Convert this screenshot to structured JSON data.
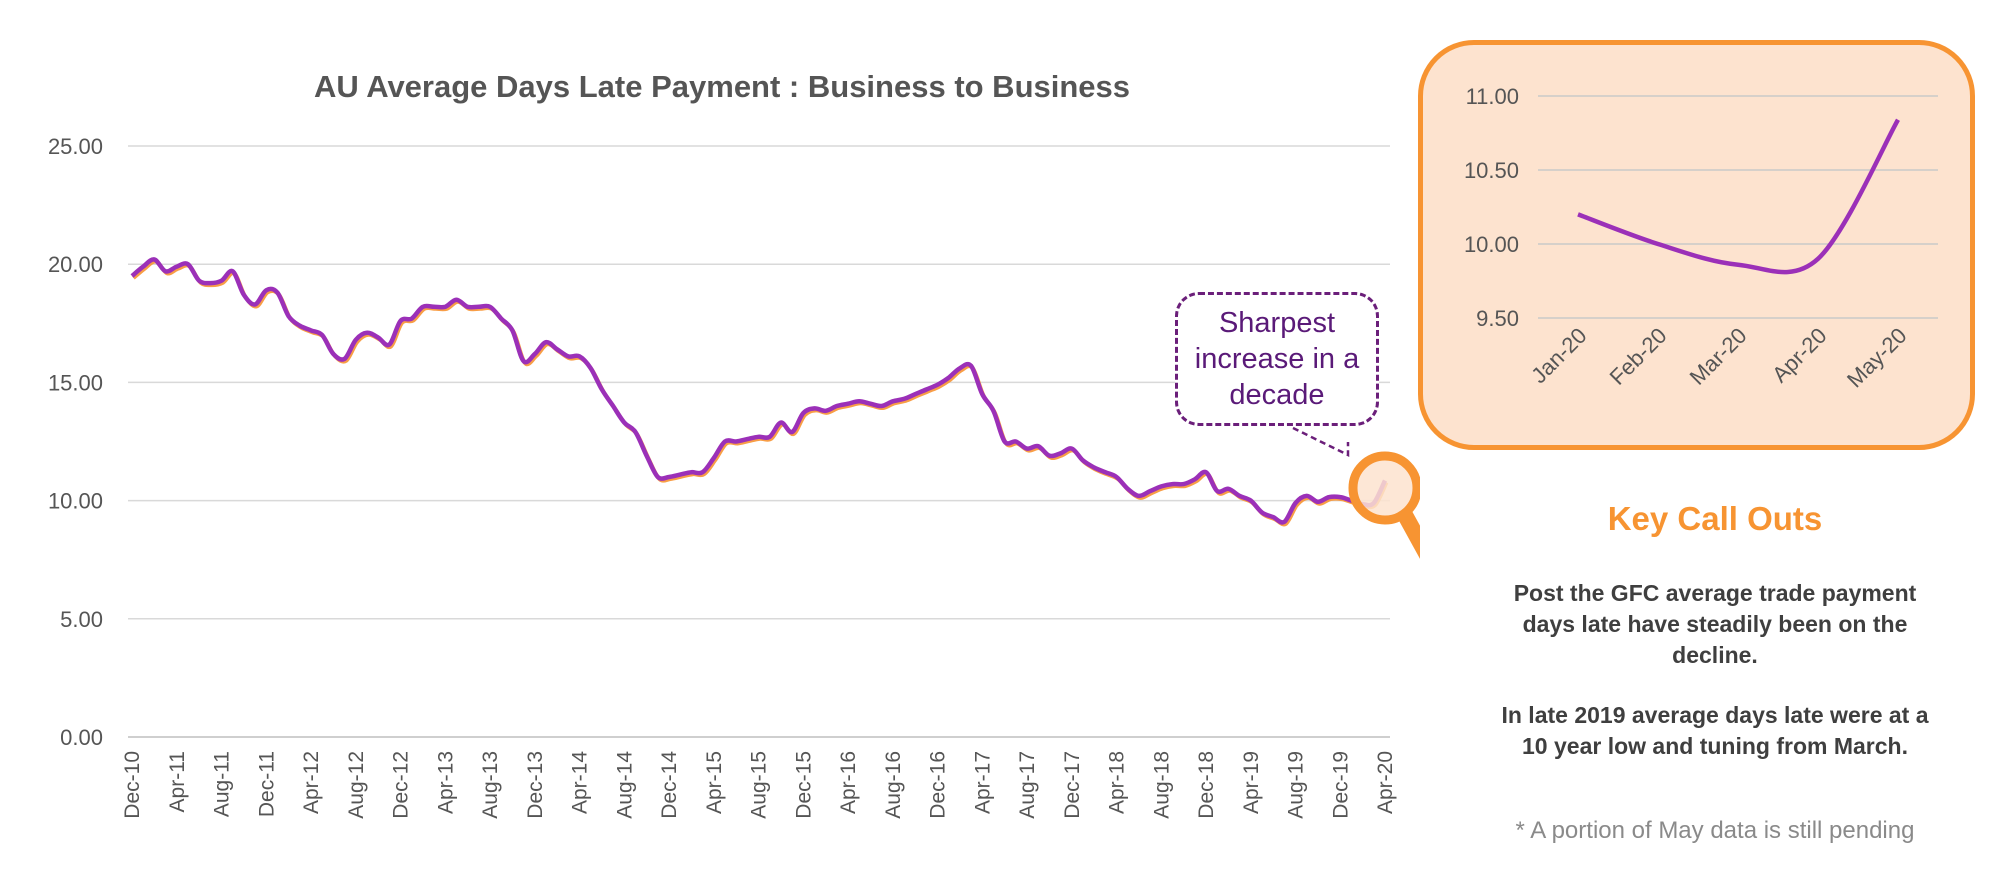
{
  "chart_data": [
    {
      "type": "line",
      "title": "AU Average Days Late Payment : Business to Business",
      "xlabel": "",
      "ylabel": "",
      "ylim": [
        0,
        25
      ],
      "yticks": [
        "0.00",
        "5.00",
        "10.00",
        "15.00",
        "20.00",
        "25.00"
      ],
      "x_tick_labels": [
        "Dec-10",
        "Apr-11",
        "Aug-11",
        "Dec-11",
        "Apr-12",
        "Aug-12",
        "Dec-12",
        "Apr-13",
        "Aug-13",
        "Dec-13",
        "Apr-14",
        "Aug-14",
        "Dec-14",
        "Apr-15",
        "Aug-15",
        "Dec-15",
        "Apr-16",
        "Aug-16",
        "Dec-16",
        "Apr-17",
        "Aug-17",
        "Dec-17",
        "Apr-18",
        "Aug-18",
        "Dec-18",
        "Apr-19",
        "Aug-19",
        "Dec-19",
        "Apr-20"
      ],
      "x_start": "Dec-10",
      "x_end": "May-20",
      "grid": true,
      "series": [
        {
          "color": "#9b30b8",
          "values": [
            19.5,
            19.9,
            20.2,
            19.7,
            19.9,
            20.0,
            19.3,
            19.2,
            19.3,
            19.7,
            18.7,
            18.3,
            18.9,
            18.8,
            17.8,
            17.4,
            17.2,
            17.0,
            16.2,
            16.0,
            16.8,
            17.1,
            16.9,
            16.6,
            17.6,
            17.7,
            18.2,
            18.2,
            18.2,
            18.5,
            18.2,
            18.2,
            18.2,
            17.7,
            17.2,
            15.9,
            16.2,
            16.7,
            16.4,
            16.1,
            16.1,
            15.6,
            14.7,
            14.0,
            13.3,
            12.9,
            11.9,
            11.0,
            11.0,
            11.1,
            11.2,
            11.2,
            11.8,
            12.5,
            12.5,
            12.6,
            12.7,
            12.7,
            13.3,
            12.9,
            13.7,
            13.9,
            13.8,
            14.0,
            14.1,
            14.2,
            14.1,
            14.0,
            14.2,
            14.3,
            14.5,
            14.7,
            14.9,
            15.2,
            15.6,
            15.7,
            14.5,
            13.8,
            12.5,
            12.5,
            12.2,
            12.3,
            11.9,
            12.0,
            12.2,
            11.7,
            11.4,
            11.2,
            11.0,
            10.5,
            10.2,
            10.4,
            10.6,
            10.7,
            10.7,
            10.9,
            11.2,
            10.4,
            10.5,
            10.2,
            10.0,
            9.5,
            9.3,
            9.1,
            9.9,
            10.2,
            9.95,
            10.15,
            10.15,
            10.0,
            9.85,
            9.9,
            10.85
          ]
        }
      ],
      "line_color": "#9b30b8",
      "shadow_color": "#f79432"
    },
    {
      "type": "line",
      "title": "",
      "xlabel": "",
      "ylabel": "",
      "ylim": [
        9.5,
        11.0
      ],
      "yticks": [
        "9.50",
        "10.00",
        "10.50",
        "11.00"
      ],
      "categories": [
        "Jan-20",
        "Feb-20",
        "Mar-20",
        "Apr-20",
        "May-20"
      ],
      "grid": true,
      "series": [
        {
          "color": "#9b30b8",
          "values": [
            10.2,
            10.0,
            9.86,
            9.9,
            10.84
          ]
        }
      ]
    }
  ],
  "callout": {
    "text": "Sharpest increase in a decade",
    "border_color": "#6b1f7a",
    "text_color": "#5a1a78"
  },
  "magnifier": {
    "color": "#f79432",
    "fill": "#fde3cf"
  },
  "inset_panel": {
    "background": "#fde3cf",
    "border_color": "#f79432"
  },
  "key_callouts": {
    "title": "Key Call Outs",
    "paragraph_1": "Post the GFC average trade payment days late have steadily been on the decline.",
    "paragraph_2": "In late 2019 average days late were at a 10 year low and tuning from March.",
    "footnote": "* A portion of May data is still pending"
  },
  "colors": {
    "axis_text": "#555555",
    "grid": "#d9d9d9",
    "accent": "#f79432",
    "line": "#9b30b8"
  }
}
